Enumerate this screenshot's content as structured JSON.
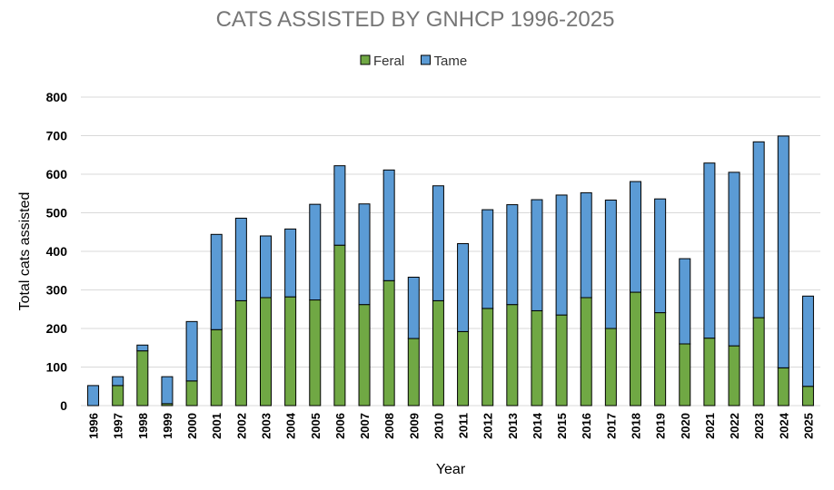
{
  "chart_data": {
    "type": "bar",
    "stacked": true,
    "title": "CATS ASSISTED BY GNHCP 1996-2025",
    "xlabel": "Year",
    "ylabel": "Total cats assisted",
    "ylim": [
      0,
      800
    ],
    "yticks": [
      "0",
      "100",
      "200",
      "300",
      "400",
      "500",
      "600",
      "700",
      "800"
    ],
    "grid": true,
    "legend_position": "top",
    "categories": [
      "1996",
      "1997",
      "1998",
      "1999",
      "2000",
      "2001",
      "2002",
      "2003",
      "2004",
      "2005",
      "2006",
      "2007",
      "2008",
      "2009",
      "2010",
      "2011",
      "2012",
      "2013",
      "2014",
      "2015",
      "2016",
      "2017",
      "2018",
      "2019",
      "2020",
      "2021",
      "2022",
      "2023",
      "2024",
      "2025"
    ],
    "series": [
      {
        "name": "Feral",
        "color": "#70a844",
        "values": [
          0,
          52,
          142,
          5,
          64,
          197,
          272,
          280,
          282,
          274,
          416,
          262,
          324,
          174,
          272,
          192,
          252,
          262,
          246,
          235,
          280,
          200,
          294,
          241,
          160,
          175,
          155,
          228,
          98,
          50
        ]
      },
      {
        "name": "Tame",
        "color": "#5b9bd5",
        "values": [
          52,
          23,
          15,
          70,
          154,
          247,
          214,
          160,
          176,
          248,
          206,
          261,
          287,
          159,
          298,
          228,
          256,
          259,
          288,
          311,
          272,
          333,
          287,
          295,
          221,
          454,
          450,
          456,
          601,
          234
        ]
      }
    ]
  }
}
